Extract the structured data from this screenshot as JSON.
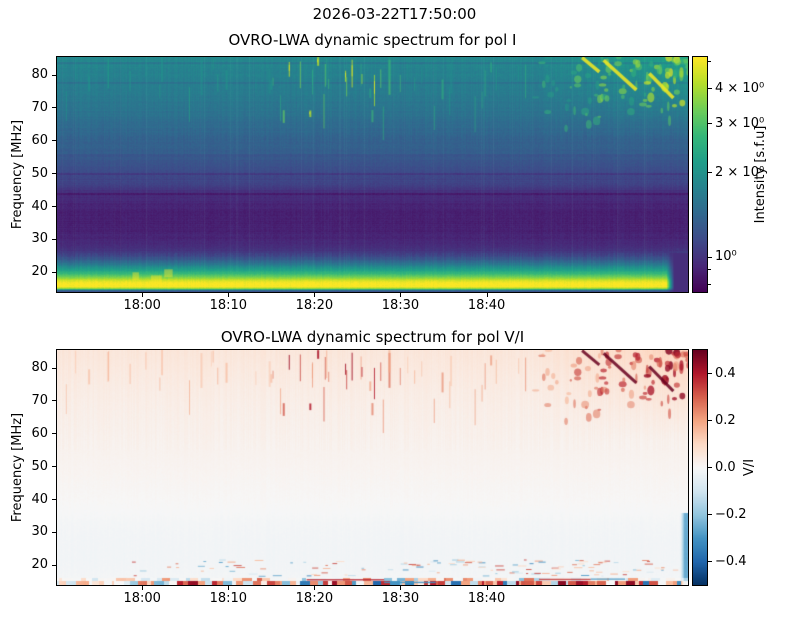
{
  "figure": {
    "title": "2026-03-22T17:50:00"
  },
  "colormaps": {
    "viridis": [
      "#440154",
      "#482878",
      "#3e4a89",
      "#31688e",
      "#26828e",
      "#1f9e89",
      "#35b779",
      "#6ece58",
      "#b5de2b",
      "#fde725"
    ],
    "rdbu_r": [
      "#053061",
      "#2166ac",
      "#4393c3",
      "#92c5de",
      "#d1e5f0",
      "#f7f7f7",
      "#fddbc7",
      "#f4a582",
      "#d6604d",
      "#b2182b",
      "#67001f"
    ]
  },
  "render_seed": 20260322,
  "chart_data": [
    {
      "type": "heatmap",
      "title": "OVRO-LWA dynamic spectrum for pol I",
      "ylabel": "Frequency [MHz]",
      "x_axis": {
        "start": "17:50",
        "span_min": 73.3,
        "ticks": [
          {
            "label": "18:00",
            "min": 9.9
          },
          {
            "label": "18:10",
            "min": 19.9
          },
          {
            "label": "18:20",
            "min": 29.9
          },
          {
            "label": "18:30",
            "min": 39.9
          },
          {
            "label": "18:40",
            "min": 49.9
          }
        ]
      },
      "y_axis": {
        "min_mhz": 14.0,
        "max_mhz": 85.5,
        "ticks": [
          {
            "label": "20",
            "mhz": 20
          },
          {
            "label": "30",
            "mhz": 30
          },
          {
            "label": "40",
            "mhz": 40
          },
          {
            "label": "50",
            "mhz": 50
          },
          {
            "label": "60",
            "mhz": 60
          },
          {
            "label": "70",
            "mhz": 70
          },
          {
            "label": "80",
            "mhz": 80
          }
        ]
      },
      "colorbar": {
        "label": "Intensity [s.f.u]",
        "scale": "log",
        "colormap": "viridis",
        "vmin": 0.75,
        "vmax": 5.2,
        "ticks": [
          {
            "label": "4 × 10⁰",
            "value": 4
          },
          {
            "label": "3 × 10⁰",
            "value": 3
          },
          {
            "label": "2 × 10⁰",
            "value": 2
          },
          {
            "label": "10⁰",
            "value": 1
          }
        ],
        "minor_tick_values": [
          5,
          0.9,
          0.8
        ]
      },
      "base_profile": [
        [
          85.5,
          0.47
        ],
        [
          82,
          0.45
        ],
        [
          78,
          0.43
        ],
        [
          74,
          0.41
        ],
        [
          70,
          0.39
        ],
        [
          66,
          0.36
        ],
        [
          62,
          0.33
        ],
        [
          58,
          0.295
        ],
        [
          54,
          0.26
        ],
        [
          50,
          0.22
        ],
        [
          46,
          0.16
        ],
        [
          43,
          0.12
        ],
        [
          40,
          0.1
        ],
        [
          36,
          0.085
        ],
        [
          32,
          0.095
        ],
        [
          29,
          0.115
        ],
        [
          27,
          0.14
        ],
        [
          25.5,
          0.19
        ],
        [
          24,
          0.28
        ],
        [
          22.5,
          0.4
        ],
        [
          21.5,
          0.5
        ],
        [
          20.5,
          0.58
        ],
        [
          19.5,
          0.68
        ],
        [
          18.5,
          0.8
        ],
        [
          17.5,
          0.93
        ],
        [
          16.8,
          1.0
        ],
        [
          15.6,
          1.0
        ],
        [
          15.1,
          0.88
        ],
        [
          14.7,
          0.55
        ],
        [
          14.4,
          0.28
        ],
        [
          14.0,
          0.22
        ]
      ],
      "features": {
        "dark_hlines_mhz": [
          83.6,
          77.6,
          49.8,
          43.9
        ],
        "bright_hbands_mhz": [
          [
            45,
            48,
            0.02
          ],
          [
            56,
            59,
            0.015
          ]
        ],
        "rfi_column_count": 48,
        "burst_clusters": [
          {
            "time_min": [
              25,
              40
            ],
            "freq_mhz": [
              66,
              85.5
            ],
            "count": 26,
            "strength": [
              0.3,
              1.0
            ]
          },
          {
            "time_min": [
              40,
              55
            ],
            "freq_mhz": [
              62,
              84
            ],
            "count": 14,
            "strength": [
              0.15,
              0.5
            ]
          },
          {
            "time_min": [
              1,
              16
            ],
            "freq_mhz": [
              73,
              85.5
            ],
            "count": 10,
            "strength": [
              0.15,
              0.45
            ]
          },
          {
            "time_min": [
              16,
              25
            ],
            "freq_mhz": [
              70,
              85.5
            ],
            "count": 8,
            "strength": [
              0.1,
              0.4
            ]
          }
        ],
        "storm": {
          "time_min": [
            55,
            73.3
          ],
          "freq_mhz": [
            58,
            85.5
          ],
          "count": 95
        },
        "storm_streaks": [
          {
            "time_min": [
              63.5,
              67.3
            ],
            "freq_mhz": [
              84.5,
              75.5
            ]
          },
          {
            "time_min": [
              68.8,
              71.6
            ],
            "freq_mhz": [
              80.5,
              73.0
            ]
          },
          {
            "time_min": [
              61.0,
              63.0
            ],
            "freq_mhz": [
              85.3,
              81.0
            ]
          }
        ],
        "low_band_hotspots": {
          "time_min": [
            8,
            15
          ],
          "freq_mhz": [
            17,
            20
          ],
          "count": 3
        },
        "low_band_fade_start_min": 70.8
      }
    },
    {
      "type": "heatmap",
      "title": "OVRO-LWA dynamic spectrum for pol V/I",
      "ylabel": "Frequency [MHz]",
      "x_axis": {
        "start": "17:50",
        "span_min": 73.3,
        "ticks": [
          {
            "label": "18:00",
            "min": 9.9
          },
          {
            "label": "18:10",
            "min": 19.9
          },
          {
            "label": "18:20",
            "min": 29.9
          },
          {
            "label": "18:30",
            "min": 39.9
          },
          {
            "label": "18:40",
            "min": 49.9
          }
        ]
      },
      "y_axis": {
        "min_mhz": 14.0,
        "max_mhz": 85.5,
        "ticks": [
          {
            "label": "20",
            "mhz": 20
          },
          {
            "label": "30",
            "mhz": 30
          },
          {
            "label": "40",
            "mhz": 40
          },
          {
            "label": "50",
            "mhz": 50
          },
          {
            "label": "60",
            "mhz": 60
          },
          {
            "label": "70",
            "mhz": 70
          },
          {
            "label": "80",
            "mhz": 80
          }
        ]
      },
      "colorbar": {
        "label": "V/I",
        "scale": "linear",
        "colormap": "RdBu_r",
        "vmin": -0.5,
        "vmax": 0.5,
        "ticks": [
          {
            "label": "0.4",
            "value": 0.4
          },
          {
            "label": "0.2",
            "value": 0.2
          },
          {
            "label": "0.0",
            "value": 0.0
          },
          {
            "label": "−0.2",
            "value": -0.2
          },
          {
            "label": "−0.4",
            "value": -0.4
          }
        ],
        "minor_tick_values": []
      },
      "base_profile": [
        [
          85.5,
          0.06
        ],
        [
          80,
          0.05
        ],
        [
          74,
          0.04
        ],
        [
          68,
          0.032
        ],
        [
          60,
          0.025
        ],
        [
          54,
          0.018
        ],
        [
          48,
          0.012
        ],
        [
          43,
          0.007
        ],
        [
          39,
          0.003
        ],
        [
          36,
          -0.002
        ],
        [
          33,
          -0.009
        ],
        [
          28,
          -0.013
        ],
        [
          22,
          -0.014
        ],
        [
          18,
          -0.012
        ],
        [
          16.3,
          -0.01
        ],
        [
          14,
          -0.012
        ]
      ],
      "features": {
        "speckle_dashes": {
          "count": 120,
          "freq_mhz": [
            16.8,
            21.8
          ],
          "value": [
            0.08,
            0.35
          ]
        },
        "bottom_line_mhz": [
          14.2,
          16.1
        ],
        "bottom_segments": [
          {
            "t": [
              29,
              38
            ],
            "f": 15.8,
            "v": 0.38
          },
          {
            "t": [
              38,
              44
            ],
            "f": 15.0,
            "v": -0.3
          },
          {
            "t": [
              56,
              62
            ],
            "f": 15.9,
            "v": 0.35
          },
          {
            "t": [
              62,
              66
            ],
            "f": 16.0,
            "v": -0.28
          }
        ],
        "right_edge_strip": {
          "time_min": [
            72.4,
            73.3
          ],
          "freq_mhz": [
            14,
            36
          ],
          "value": -0.24
        },
        "cool_band_max_mhz": 34
      }
    }
  ]
}
